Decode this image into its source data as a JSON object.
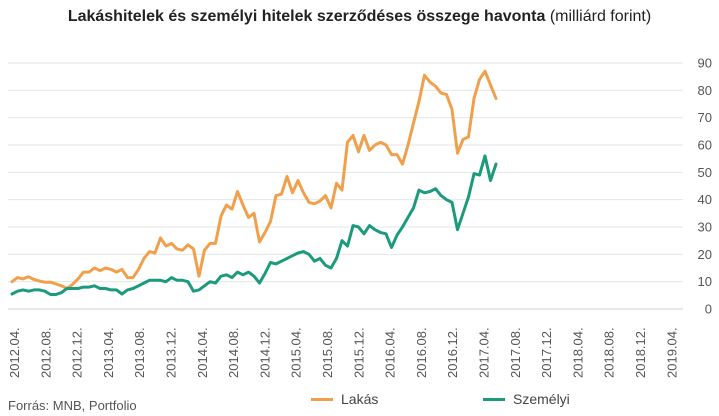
{
  "chart_data": {
    "type": "line",
    "title": "Lakáshitelek és személyi hitelek szerződéses összege havonta",
    "title_unit": "(milliárd forint)",
    "source": "Forrás: MNB, Portfolio",
    "ylim": [
      0,
      90
    ],
    "yticks": [
      0,
      10,
      20,
      30,
      40,
      50,
      60,
      70,
      80,
      90
    ],
    "x_tick_labels": [
      "2012.04.",
      "2012.08.",
      "2012.12.",
      "2013.04.",
      "2013.08.",
      "2013.12.",
      "2014.04.",
      "2014.08.",
      "2014.12.",
      "2015.04.",
      "2015.08.",
      "2015.12.",
      "2016.04.",
      "2016.08.",
      "2016.12.",
      "2017.04.",
      "2017.08.",
      "2017.12.",
      "2018.04.",
      "2018.08.",
      "2018.12.",
      "2019.04."
    ],
    "x_start": "2012.04.",
    "x_end": "2019.06.",
    "grid": true,
    "legend_position": "bottom",
    "series": [
      {
        "name": "Lakás",
        "color": "#F0A04B",
        "values": [
          10,
          11.5,
          11,
          11.8,
          10.8,
          10.2,
          9.8,
          9.8,
          9.2,
          8.5,
          7.5,
          9,
          11,
          13.5,
          13.5,
          15,
          14,
          15,
          14.5,
          13.5,
          14.5,
          11.5,
          11.5,
          14.5,
          18.5,
          21,
          20.5,
          26,
          23,
          24,
          22,
          21.5,
          23.5,
          22,
          12,
          21.5,
          24,
          24,
          34,
          38,
          36.5,
          43,
          38,
          33.5,
          35,
          24.5,
          28,
          32,
          41.5,
          42,
          48.5,
          42.5,
          47,
          42.5,
          39,
          38.5,
          39.5,
          41.5,
          37,
          46,
          43.5,
          61,
          63.5,
          57.5,
          63.5,
          58,
          60,
          61,
          60,
          56.5,
          56.5,
          53,
          60,
          68,
          76,
          85.5,
          83,
          81.5,
          79,
          78.5,
          73,
          57,
          62,
          63,
          77,
          84,
          87,
          82,
          77
        ]
      },
      {
        "name": "Személyi",
        "color": "#1B9A7C",
        "values": [
          5.5,
          6.5,
          7,
          6.5,
          7,
          7,
          6.5,
          5.3,
          5.3,
          6,
          7.5,
          7.5,
          7.5,
          8,
          8,
          8.5,
          7.5,
          7.5,
          7,
          7,
          5.5,
          7,
          7.5,
          8.5,
          9.5,
          10.5,
          10.5,
          10.5,
          10,
          11.5,
          10.5,
          10.5,
          10,
          6.5,
          7,
          8.5,
          10,
          9.5,
          12,
          12.5,
          11.5,
          13.5,
          12.5,
          13.5,
          12,
          9.5,
          13,
          17,
          16.5,
          17.5,
          18.5,
          19.5,
          20.5,
          21,
          20,
          17.5,
          18.5,
          16,
          15,
          18.5,
          25,
          23,
          30.5,
          30,
          27.5,
          30.5,
          29,
          28,
          27.5,
          22.5,
          27,
          30,
          33.5,
          37,
          43.5,
          42.5,
          43,
          44,
          41.5,
          40,
          39,
          29,
          35,
          41,
          49.5,
          49,
          56,
          47,
          53
        ]
      }
    ]
  }
}
